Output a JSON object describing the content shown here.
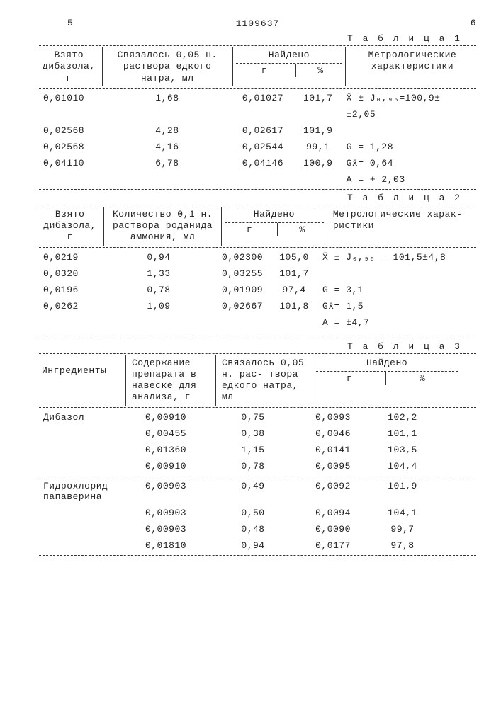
{
  "page": {
    "leftNum": "5",
    "rightNum": "6",
    "docNumber": "1109637"
  },
  "t1": {
    "label": "Т а б л и ц а  1",
    "h1": "Взято дибазола, г",
    "h2": "Связалось 0,05 н. раствора едкого натра,   мл",
    "h3": "Найдено",
    "h3a": "г",
    "h3b": "%",
    "h4": "Метрологические характеристики",
    "rows": [
      {
        "a": "0,01010",
        "b": "1,68",
        "c": "0,01027",
        "d": "101,7",
        "e": "X̄ ± J₀,₉₅=100,9±"
      },
      {
        "a": "",
        "b": "",
        "c": "",
        "d": "",
        "e": "±2,05"
      },
      {
        "a": "0,02568",
        "b": "4,28",
        "c": "0,02617",
        "d": "101,9",
        "e": ""
      },
      {
        "a": "0,02568",
        "b": "4,16",
        "c": "0,02544",
        "d": "99,1",
        "e": "G = 1,28"
      },
      {
        "a": "0,04110",
        "b": "6,78",
        "c": "0,04146",
        "d": "100,9",
        "e": "Gx̄= 0,64"
      },
      {
        "a": "",
        "b": "",
        "c": "",
        "d": "",
        "e": "A = + 2,03"
      }
    ]
  },
  "t2": {
    "label": "Т а б л и ц а  2",
    "h1": "Взято дибазола, г",
    "h2": "Количество 0,1 н. раствора роданида аммония, мл",
    "h3": "Найдено",
    "h3a": "г",
    "h3b": "%",
    "h4": "Метрологические харак- ристики",
    "rows": [
      {
        "a": "0,0219",
        "b": "0,94",
        "c": "0,02300",
        "d": "105,0",
        "e": "X̄  ± J₀,₉₅ = 101,5±4,8"
      },
      {
        "a": "0,0320",
        "b": "1,33",
        "c": "0,03255",
        "d": "101,7",
        "e": ""
      },
      {
        "a": "0,0196",
        "b": "0,78",
        "c": "0,01909",
        "d": "97,4",
        "e": "G = 3,1"
      },
      {
        "a": "0,0262",
        "b": "1,09",
        "c": "0,02667",
        "d": "101,8",
        "e": "Gx̄= 1,5"
      },
      {
        "a": "",
        "b": "",
        "c": "",
        "d": "",
        "e": "A = ±4,7"
      }
    ]
  },
  "t3": {
    "label": "Т а б л и ц а  3",
    "h1": "Ингредиенты",
    "h2": "Содержание препарата в навеске для анализа, г",
    "h3": "Связалось 0,05 н. рас- твора едкого натра, мл",
    "h4": "Найдено",
    "h4a": "г",
    "h4b": "%",
    "rows": [
      {
        "a": "Дибазол",
        "b": "0,00910",
        "c": "0,75",
        "d": "0,0093",
        "e": "102,2"
      },
      {
        "a": "",
        "b": "0,00455",
        "c": "0,38",
        "d": "0,0046",
        "e": "101,1"
      },
      {
        "a": "",
        "b": "0,01360",
        "c": "1,15",
        "d": "0,0141",
        "e": "103,5"
      },
      {
        "a": "",
        "b": "0,00910",
        "c": "0,78",
        "d": "0,0095",
        "e": "104,4"
      }
    ],
    "rows2": [
      {
        "a": "Гидрохлорид папаверина",
        "b": "0,00903",
        "c": "0,49",
        "d": "0,0092",
        "e": "101,9"
      },
      {
        "a": "",
        "b": "0,00903",
        "c": "0,50",
        "d": "0,0094",
        "e": "104,1"
      },
      {
        "a": "",
        "b": "0,00903",
        "c": "0,48",
        "d": "0,0090",
        "e": "99,7"
      },
      {
        "a": "",
        "b": "0,01810",
        "c": "0,94",
        "d": "0,0177",
        "e": "97,8"
      }
    ]
  }
}
